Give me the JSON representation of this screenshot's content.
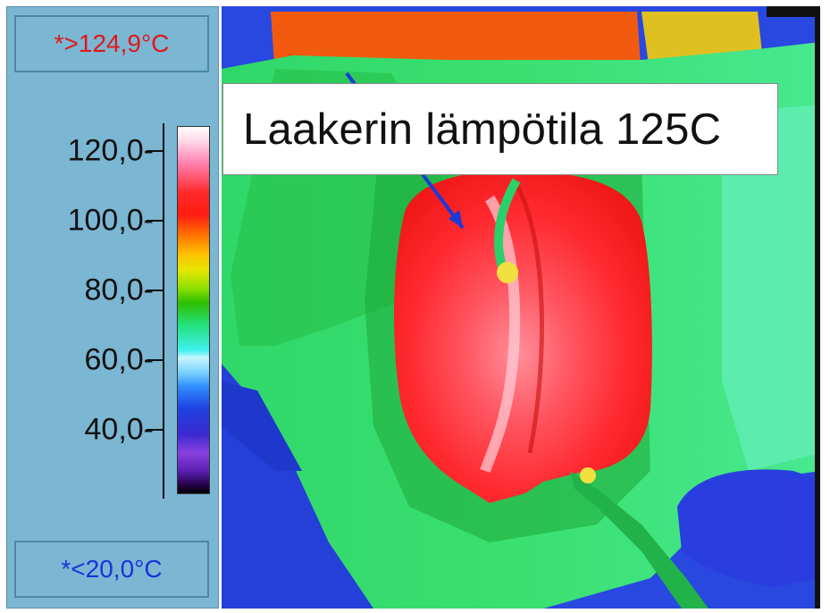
{
  "palette": {
    "max_label": "*>124,9°C",
    "min_label": "*<20,0°C",
    "ticks": [
      {
        "label": "120,0-",
        "value": 120
      },
      {
        "label": "100,0-",
        "value": 100
      },
      {
        "label": "80,0-",
        "value": 80
      },
      {
        "label": "60,0-",
        "value": 60
      },
      {
        "label": "40,0-",
        "value": 40
      }
    ],
    "colors": {
      "max_label": "#e01818",
      "min_label": "#1a32d8",
      "panel": "#7bb6d3"
    }
  },
  "image": {
    "annotation": "Laakerin lämpötila 125C",
    "arrow_color": "#1a3ad8"
  }
}
